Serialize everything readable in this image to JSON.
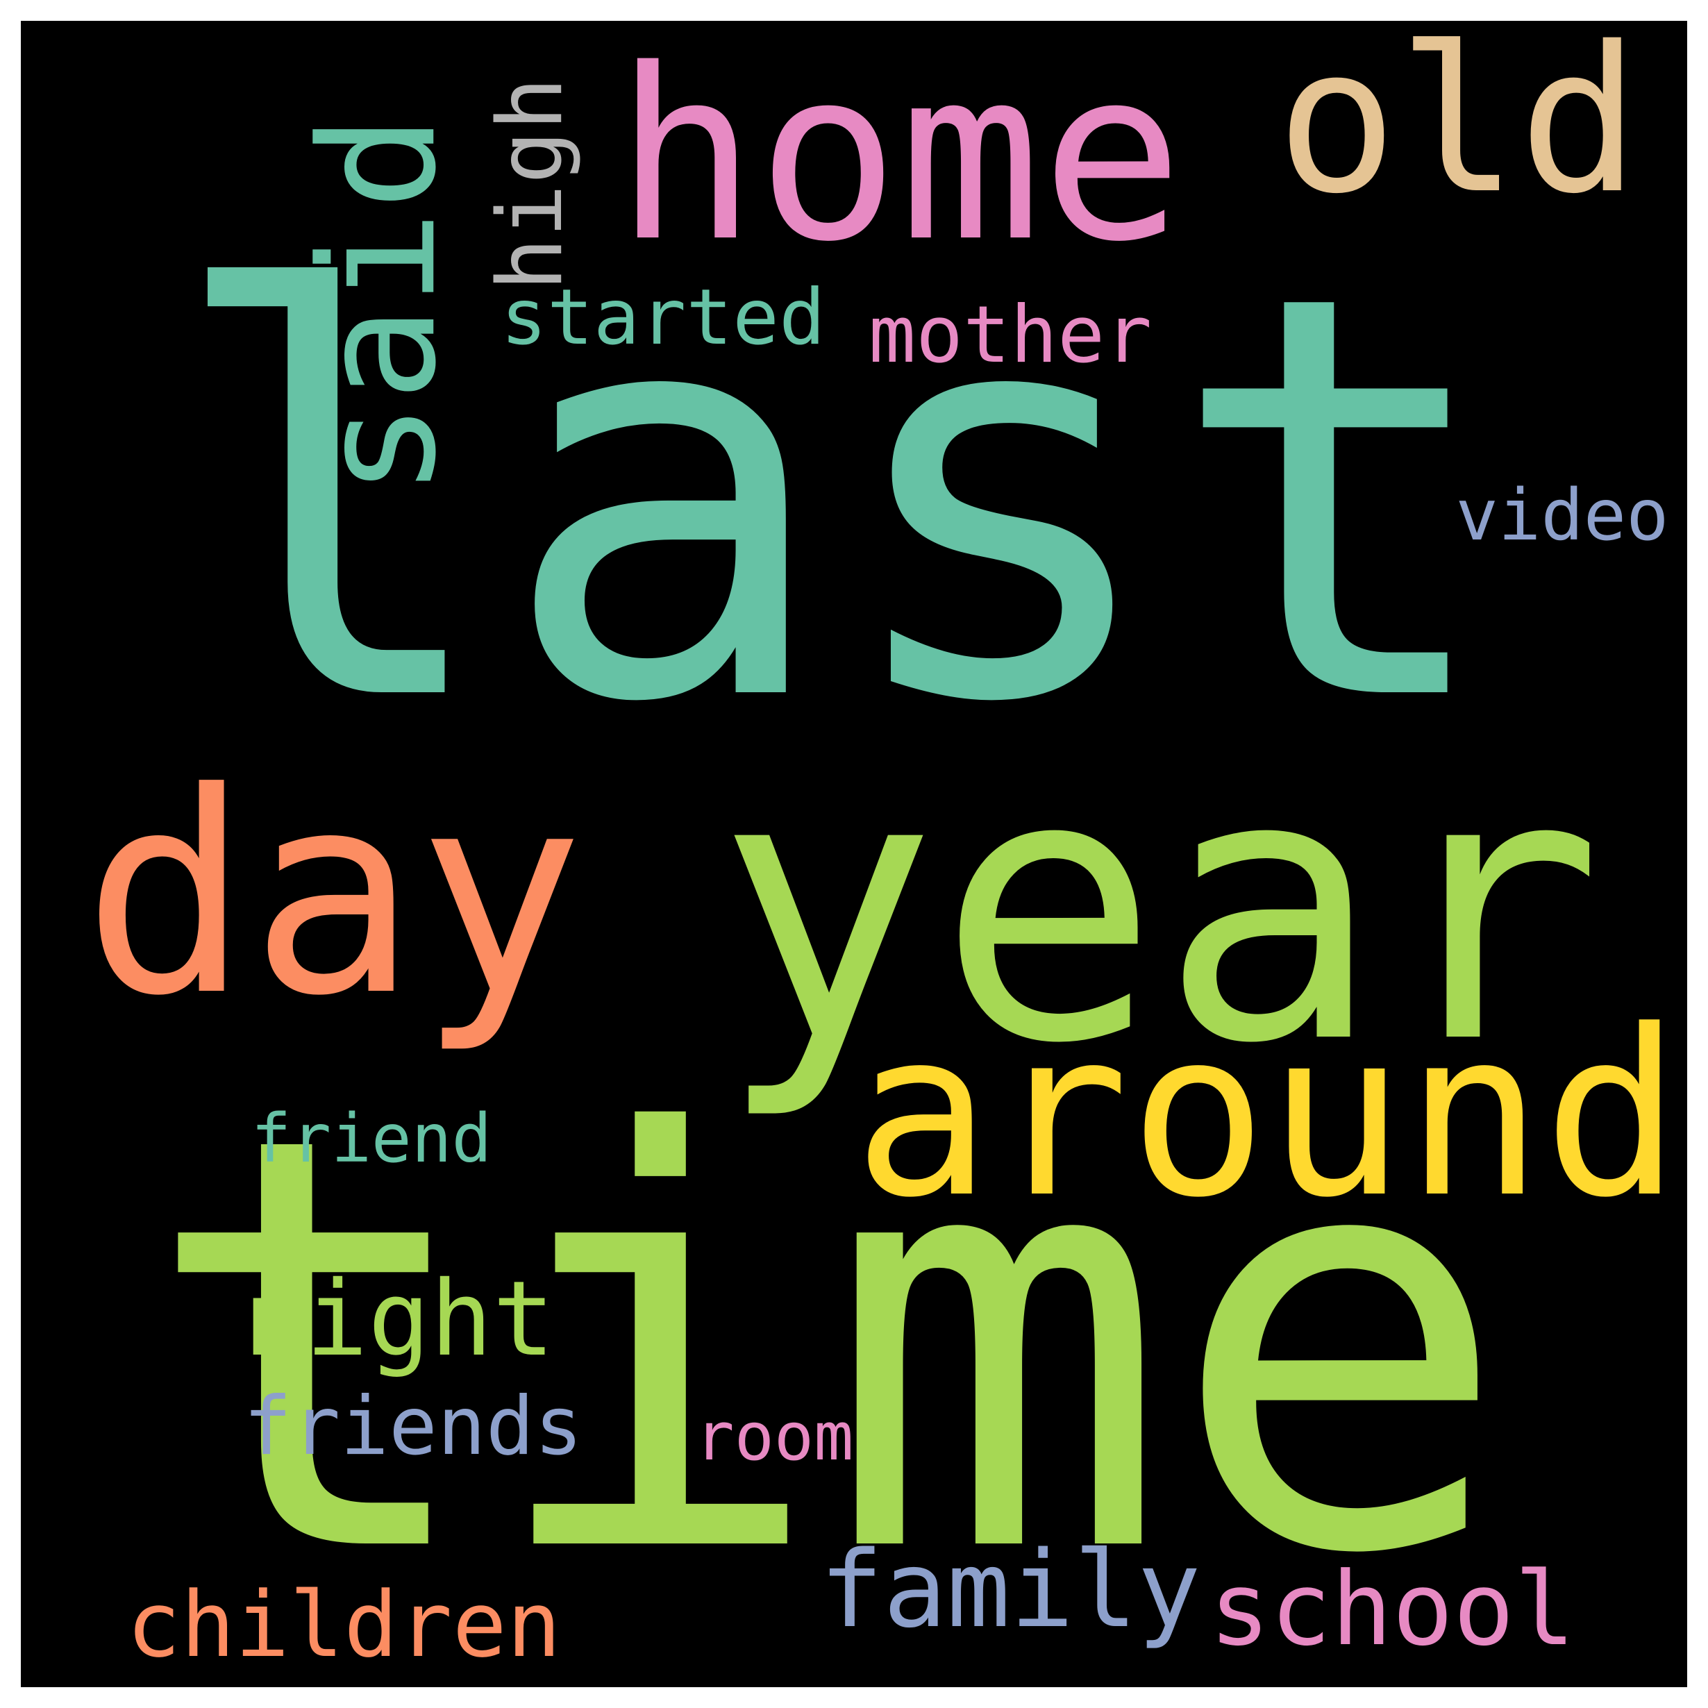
{
  "background_color": "#000000",
  "frame_color": "#ffffff",
  "palette": {
    "teal": "#66c2a5",
    "green": "#a6d854",
    "orange": "#fc8d62",
    "yellow": "#ffd92f",
    "pink": "#e78ac3",
    "tan": "#e5c494",
    "lavender": "#8da0cb",
    "gray": "#b3b3b3"
  },
  "words": [
    {
      "key": "last",
      "text": "last",
      "color": "#66c2a5",
      "rotated": false
    },
    {
      "key": "time",
      "text": "time",
      "color": "#a6d854",
      "rotated": false
    },
    {
      "key": "year",
      "text": "year",
      "color": "#a6d854",
      "rotated": false
    },
    {
      "key": "day",
      "text": "day",
      "color": "#fc8d62",
      "rotated": false
    },
    {
      "key": "around",
      "text": "around",
      "color": "#ffd92f",
      "rotated": false
    },
    {
      "key": "home",
      "text": "home",
      "color": "#e78ac3",
      "rotated": false
    },
    {
      "key": "old",
      "text": "old",
      "color": "#e5c494",
      "rotated": false
    },
    {
      "key": "said",
      "text": "said",
      "color": "#66c2a5",
      "rotated": true
    },
    {
      "key": "high",
      "text": "high",
      "color": "#b3b3b3",
      "rotated": true
    },
    {
      "key": "started",
      "text": "started",
      "color": "#66c2a5",
      "rotated": false
    },
    {
      "key": "mother",
      "text": "mother",
      "color": "#e78ac3",
      "rotated": false
    },
    {
      "key": "video",
      "text": "video",
      "color": "#8da0cb",
      "rotated": false
    },
    {
      "key": "friend",
      "text": "friend",
      "color": "#66c2a5",
      "rotated": false
    },
    {
      "key": "night",
      "text": "night",
      "color": "#a6d854",
      "rotated": false
    },
    {
      "key": "friends",
      "text": "friends",
      "color": "#8da0cb",
      "rotated": false
    },
    {
      "key": "room",
      "text": "room",
      "color": "#e78ac3",
      "rotated": false
    },
    {
      "key": "children",
      "text": "children",
      "color": "#fc8d62",
      "rotated": false
    },
    {
      "key": "family",
      "text": "family",
      "color": "#8da0cb",
      "rotated": false
    },
    {
      "key": "school",
      "text": "school",
      "color": "#e78ac3",
      "rotated": false
    }
  ]
}
